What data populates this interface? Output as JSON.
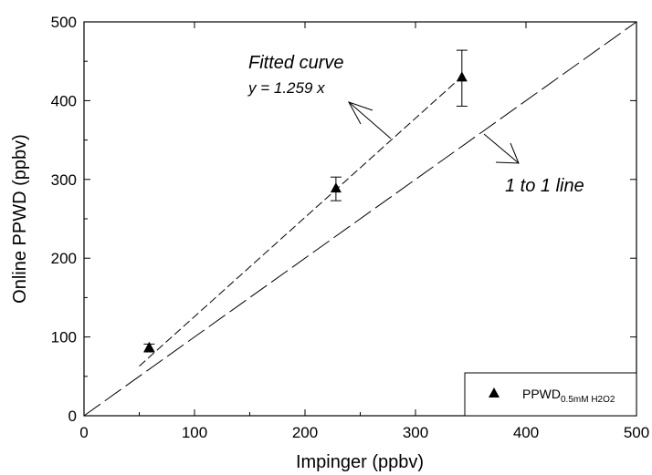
{
  "chart_data": {
    "type": "scatter",
    "title": "",
    "xlabel": "Impinger (ppbv)",
    "ylabel": "Online PPWD (ppbv)",
    "xlim": [
      0,
      500
    ],
    "ylim": [
      0,
      500
    ],
    "x_ticks": [
      0,
      100,
      200,
      300,
      400,
      500
    ],
    "y_ticks": [
      0,
      100,
      200,
      300,
      400,
      500
    ],
    "grid": false,
    "legend": {
      "placement": "bottom-right",
      "label_main": "PPWD",
      "label_sub": "0.5mM H2O2"
    },
    "series": [
      {
        "marker": "triangle",
        "color": "#000000",
        "points": [
          {
            "x": 59,
            "y": 86,
            "err_low": 81,
            "err_high": 91
          },
          {
            "x": 228,
            "y": 288,
            "err_low": 273,
            "err_high": 303
          },
          {
            "x": 342,
            "y": 429,
            "err_low": 393,
            "err_high": 464
          }
        ]
      }
    ],
    "lines": [
      {
        "kind": "fit",
        "slope": 1.259,
        "x_range": [
          50,
          342
        ],
        "color": "#000000"
      },
      {
        "kind": "identity",
        "slope": 1,
        "x_range": [
          0,
          500
        ],
        "color": "#000000"
      }
    ],
    "annotations": {
      "fit_title": "Fitted curve",
      "fit_equation": "y = 1.259 x",
      "identity_label": "1 to 1 line"
    }
  }
}
